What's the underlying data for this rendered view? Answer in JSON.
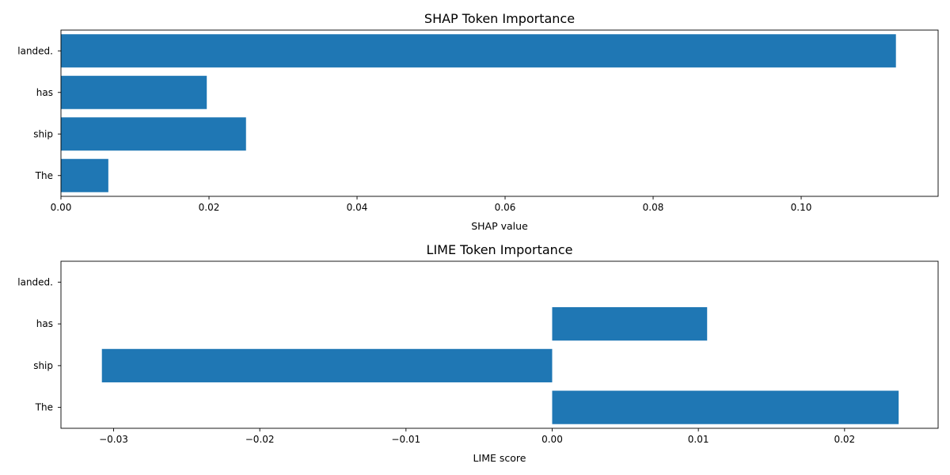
{
  "chart_data": [
    {
      "type": "bar",
      "orientation": "horizontal",
      "title": "SHAP Token Importance",
      "xlabel": "SHAP value",
      "ylabel": "",
      "categories": [
        "The",
        "ship",
        "has",
        "landed."
      ],
      "values": [
        0.0064,
        0.025,
        0.0197,
        0.1128
      ],
      "xlim": [
        0,
        0.1185
      ],
      "xticks": [
        0.0,
        0.02,
        0.04,
        0.06,
        0.08,
        0.1
      ],
      "xtick_labels": [
        "0.00",
        "0.02",
        "0.04",
        "0.06",
        "0.08",
        "0.10"
      ],
      "bar_color": "#1f77b4",
      "grid": false
    },
    {
      "type": "bar",
      "orientation": "horizontal",
      "title": "LIME Token Importance",
      "xlabel": "LIME score",
      "ylabel": "",
      "categories": [
        "The",
        "ship",
        "has",
        "landed."
      ],
      "values": [
        0.0237,
        -0.0308,
        0.0106,
        0.0
      ],
      "xlim": [
        -0.0336,
        0.0264
      ],
      "xticks": [
        -0.03,
        -0.02,
        -0.01,
        0.0,
        0.01,
        0.02
      ],
      "xtick_labels": [
        "−0.03",
        "−0.02",
        "−0.01",
        "0.00",
        "0.01",
        "0.02"
      ],
      "bar_color": "#1f77b4",
      "grid": false
    }
  ]
}
